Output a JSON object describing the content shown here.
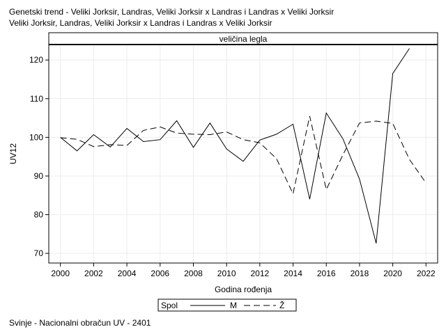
{
  "header": {
    "title_line1": "Genetski trend - Veliki Jorksir, Landras, Veliki Jorksir x Landras i Landras x Veliki Jorksir",
    "title_line2": "Veliki Jorksir, Landras, Veliki Jorksir x Landras i Landras x Veliki Jorksir"
  },
  "footer": {
    "text": "Svinje - Nacionalni obračun UV - 2401"
  },
  "chart_data": {
    "type": "line",
    "panel_label": "veličina legla",
    "xlabel": "Godina rođenja",
    "ylabel": "UV12",
    "xlim": [
      1999.3,
      2022.7
    ],
    "ylim": [
      67.5,
      124
    ],
    "x_ticks": [
      2000,
      2002,
      2004,
      2006,
      2008,
      2010,
      2012,
      2014,
      2016,
      2018,
      2020,
      2022
    ],
    "y_ticks": [
      70,
      80,
      90,
      100,
      110,
      120
    ],
    "grid": true,
    "legend": {
      "title": "Spol",
      "position": "bottom-center"
    },
    "series": [
      {
        "name": "M",
        "style": "solid",
        "x": [
          2000,
          2001,
          2002,
          2003,
          2004,
          2005,
          2006,
          2007,
          2008,
          2009,
          2010,
          2011,
          2012,
          2013,
          2014,
          2015,
          2016,
          2017,
          2018,
          2019,
          2020,
          2021
        ],
        "values": [
          100.0,
          96.5,
          100.7,
          97.5,
          102.3,
          98.9,
          99.4,
          104.3,
          97.4,
          103.7,
          97.0,
          93.8,
          99.3,
          100.8,
          103.4,
          84.0,
          106.3,
          99.6,
          89.2,
          72.6,
          116.5,
          123.0
        ]
      },
      {
        "name": "Ž",
        "style": "dashed",
        "x": [
          2000,
          2001,
          2002,
          2003,
          2004,
          2005,
          2006,
          2007,
          2008,
          2009,
          2010,
          2011,
          2012,
          2013,
          2014,
          2015,
          2016,
          2017,
          2018,
          2019,
          2020,
          2021,
          2022
        ],
        "values": [
          99.9,
          99.5,
          97.6,
          98.1,
          97.9,
          101.8,
          102.7,
          101.1,
          100.8,
          100.7,
          101.4,
          99.4,
          98.6,
          94.5,
          85.4,
          105.5,
          86.5,
          95.5,
          103.7,
          104.2,
          103.6,
          94.3,
          88.2
        ]
      }
    ]
  }
}
